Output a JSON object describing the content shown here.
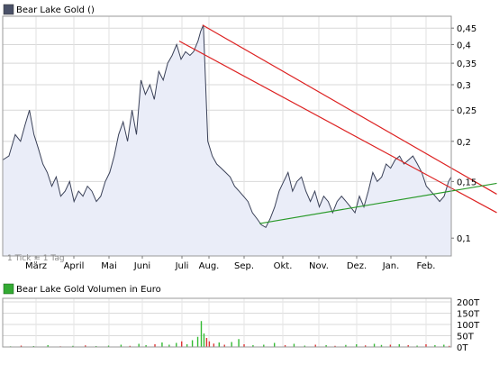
{
  "chart_data": [
    {
      "type": "area",
      "title": "Bear Lake Gold ()",
      "scale": "log",
      "grid": true,
      "legend_position": "top-left",
      "legend_color": "#4a5168",
      "line_color": "#3a4158",
      "fill_color": "#eaedf8",
      "y_ticks": [
        0.1,
        0.15,
        0.2,
        0.25,
        0.3,
        0.35,
        0.4,
        0.45
      ],
      "y_tick_labels": [
        "0,1",
        "0,15",
        "0,2",
        "0,25",
        "0,3",
        "0,35",
        "0,4",
        "0,45"
      ],
      "ylim": [
        0.088,
        0.49
      ],
      "x_tick_labels": [
        "März",
        "April",
        "Mai",
        "Juni",
        "Juli",
        "Aug.",
        "Sep.",
        "Okt.",
        "Nov.",
        "Dez.",
        "Jan.",
        "Feb."
      ],
      "watermark": "1 Tick = 1 Tag",
      "x": [
        0,
        7,
        14,
        20,
        25,
        30,
        35,
        40,
        45,
        50,
        55,
        60,
        65,
        70,
        75,
        80,
        85,
        90,
        95,
        100,
        105,
        110,
        115,
        120,
        125,
        130,
        135,
        140,
        145,
        150,
        155,
        160,
        165,
        170,
        175,
        180,
        185,
        190,
        195,
        200,
        205,
        210,
        214,
        219,
        222,
        225,
        230,
        235,
        240,
        245,
        250,
        255,
        260,
        265,
        270,
        275,
        280,
        285,
        290,
        295,
        300,
        305,
        310,
        315,
        320,
        325,
        330,
        335,
        340,
        345,
        350,
        355,
        360,
        365,
        370,
        375,
        380,
        385,
        390,
        395,
        400,
        405,
        410,
        415,
        420,
        425,
        430,
        435,
        440,
        445,
        450,
        455,
        460,
        465,
        470,
        475,
        480,
        485,
        490,
        495,
        500,
        503
      ],
      "values": [
        0.175,
        0.18,
        0.21,
        0.2,
        0.225,
        0.25,
        0.21,
        0.19,
        0.17,
        0.16,
        0.145,
        0.155,
        0.135,
        0.14,
        0.15,
        0.13,
        0.14,
        0.135,
        0.145,
        0.14,
        0.13,
        0.135,
        0.15,
        0.16,
        0.18,
        0.21,
        0.23,
        0.2,
        0.25,
        0.21,
        0.31,
        0.28,
        0.3,
        0.27,
        0.33,
        0.31,
        0.35,
        0.37,
        0.4,
        0.36,
        0.38,
        0.37,
        0.38,
        0.41,
        0.44,
        0.46,
        0.2,
        0.18,
        0.17,
        0.165,
        0.16,
        0.155,
        0.145,
        0.14,
        0.135,
        0.13,
        0.12,
        0.115,
        0.11,
        0.108,
        0.115,
        0.125,
        0.14,
        0.15,
        0.16,
        0.14,
        0.15,
        0.155,
        0.14,
        0.13,
        0.14,
        0.125,
        0.135,
        0.13,
        0.12,
        0.13,
        0.135,
        0.13,
        0.125,
        0.12,
        0.135,
        0.125,
        0.14,
        0.16,
        0.15,
        0.155,
        0.17,
        0.165,
        0.175,
        0.18,
        0.17,
        0.175,
        0.18,
        0.17,
        0.16,
        0.145,
        0.14,
        0.135,
        0.13,
        0.135,
        0.15,
        0.155
      ],
      "trendlines": [
        {
          "color": "#dd2222",
          "x1": 198,
          "y1": 0.41,
          "x2": 554,
          "y2": 0.12
        },
        {
          "color": "#dd2222",
          "x1": 224,
          "y1": 0.46,
          "x2": 554,
          "y2": 0.137
        },
        {
          "color": "#2a9a2a",
          "x1": 288,
          "y1": 0.111,
          "x2": 554,
          "y2": 0.148
        }
      ]
    },
    {
      "type": "bar",
      "title": "Bear Lake Gold Volumen in Euro",
      "legend_color": "#33aa33",
      "y_ticks": [
        0,
        50,
        100,
        150,
        200
      ],
      "y_tick_labels": [
        "0T",
        "50T",
        "100T",
        "150T",
        "200T"
      ],
      "ylim": [
        0,
        200
      ],
      "up_color": "#33bb33",
      "down_color": "#dd3333",
      "bars": [
        {
          "x": 8,
          "v": 3,
          "up": true
        },
        {
          "x": 20,
          "v": 6,
          "up": false
        },
        {
          "x": 34,
          "v": 4,
          "up": true
        },
        {
          "x": 50,
          "v": 8,
          "up": true
        },
        {
          "x": 64,
          "v": 3,
          "up": false
        },
        {
          "x": 78,
          "v": 5,
          "up": true
        },
        {
          "x": 92,
          "v": 7,
          "up": false
        },
        {
          "x": 104,
          "v": 4,
          "up": true
        },
        {
          "x": 118,
          "v": 6,
          "up": true
        },
        {
          "x": 132,
          "v": 10,
          "up": true
        },
        {
          "x": 142,
          "v": 5,
          "up": false
        },
        {
          "x": 152,
          "v": 14,
          "up": true
        },
        {
          "x": 160,
          "v": 8,
          "up": true
        },
        {
          "x": 170,
          "v": 12,
          "up": false
        },
        {
          "x": 178,
          "v": 20,
          "up": true
        },
        {
          "x": 186,
          "v": 10,
          "up": true
        },
        {
          "x": 194,
          "v": 18,
          "up": true
        },
        {
          "x": 200,
          "v": 25,
          "up": false
        },
        {
          "x": 206,
          "v": 12,
          "up": true
        },
        {
          "x": 212,
          "v": 30,
          "up": true
        },
        {
          "x": 218,
          "v": 45,
          "up": true
        },
        {
          "x": 222,
          "v": 115,
          "up": true
        },
        {
          "x": 225,
          "v": 60,
          "up": true
        },
        {
          "x": 228,
          "v": 40,
          "up": false
        },
        {
          "x": 231,
          "v": 25,
          "up": false
        },
        {
          "x": 236,
          "v": 15,
          "up": false
        },
        {
          "x": 242,
          "v": 20,
          "up": true
        },
        {
          "x": 248,
          "v": 10,
          "up": false
        },
        {
          "x": 256,
          "v": 22,
          "up": true
        },
        {
          "x": 264,
          "v": 35,
          "up": true
        },
        {
          "x": 270,
          "v": 12,
          "up": false
        },
        {
          "x": 280,
          "v": 8,
          "up": true
        },
        {
          "x": 292,
          "v": 10,
          "up": true
        },
        {
          "x": 304,
          "v": 18,
          "up": true
        },
        {
          "x": 316,
          "v": 8,
          "up": false
        },
        {
          "x": 326,
          "v": 14,
          "up": true
        },
        {
          "x": 338,
          "v": 6,
          "up": true
        },
        {
          "x": 350,
          "v": 10,
          "up": false
        },
        {
          "x": 362,
          "v": 8,
          "up": true
        },
        {
          "x": 372,
          "v": 5,
          "up": false
        },
        {
          "x": 384,
          "v": 9,
          "up": true
        },
        {
          "x": 396,
          "v": 12,
          "up": true
        },
        {
          "x": 406,
          "v": 7,
          "up": false
        },
        {
          "x": 416,
          "v": 14,
          "up": true
        },
        {
          "x": 424,
          "v": 9,
          "up": true
        },
        {
          "x": 434,
          "v": 10,
          "up": false
        },
        {
          "x": 444,
          "v": 12,
          "up": true
        },
        {
          "x": 454,
          "v": 8,
          "up": false
        },
        {
          "x": 464,
          "v": 6,
          "up": true
        },
        {
          "x": 474,
          "v": 12,
          "up": false
        },
        {
          "x": 484,
          "v": 8,
          "up": true
        },
        {
          "x": 494,
          "v": 10,
          "up": true
        },
        {
          "x": 500,
          "v": 5,
          "up": false
        }
      ]
    }
  ]
}
